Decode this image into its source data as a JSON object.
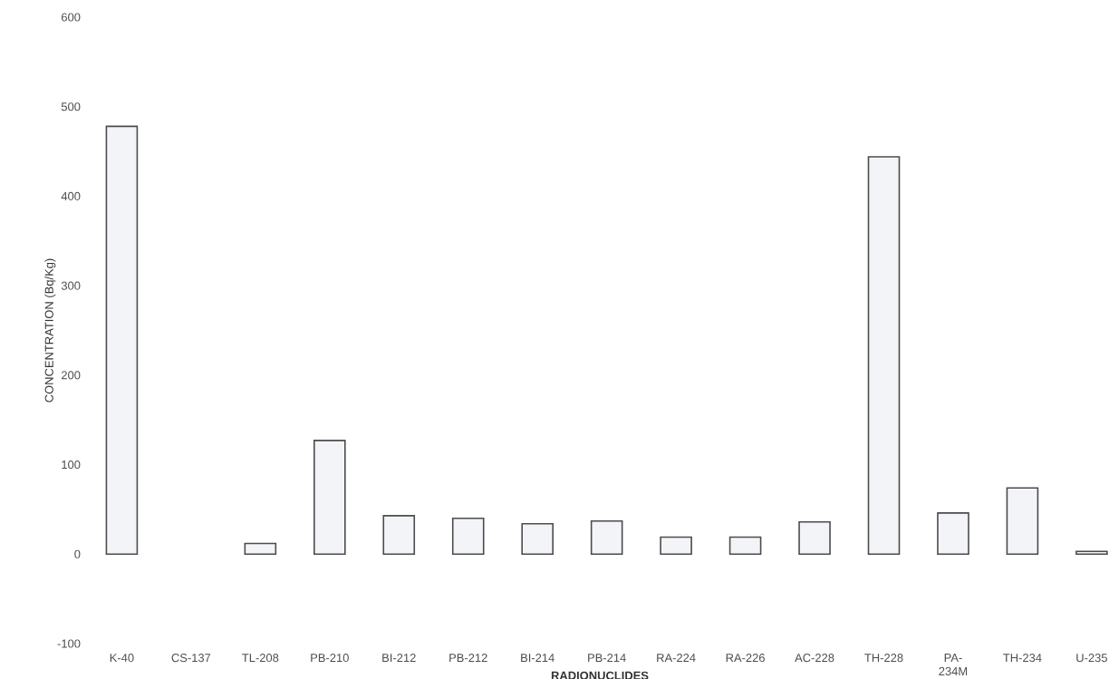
{
  "chart_data": {
    "type": "bar",
    "xlabel": "RADIONUCLIDES",
    "ylabel": "CONCENTRATION (Bq/Kg)",
    "categories": [
      "K-40",
      "CS-137",
      "TL-208",
      "PB-210",
      "BI-212",
      "PB-212",
      "BI-214",
      "PB-214",
      "RA-224",
      "RA-226",
      "AC-228",
      "TH-228",
      "PA-234M",
      "TH-234",
      "U-235"
    ],
    "values": [
      478,
      null,
      12,
      127,
      43,
      40,
      34,
      37,
      19,
      19,
      36,
      444,
      46,
      74,
      3
    ],
    "color": "#f3f4f7",
    "ylim": [
      -100,
      600
    ],
    "yticks": [
      -100,
      0,
      100,
      200,
      300,
      400,
      500,
      600
    ]
  }
}
